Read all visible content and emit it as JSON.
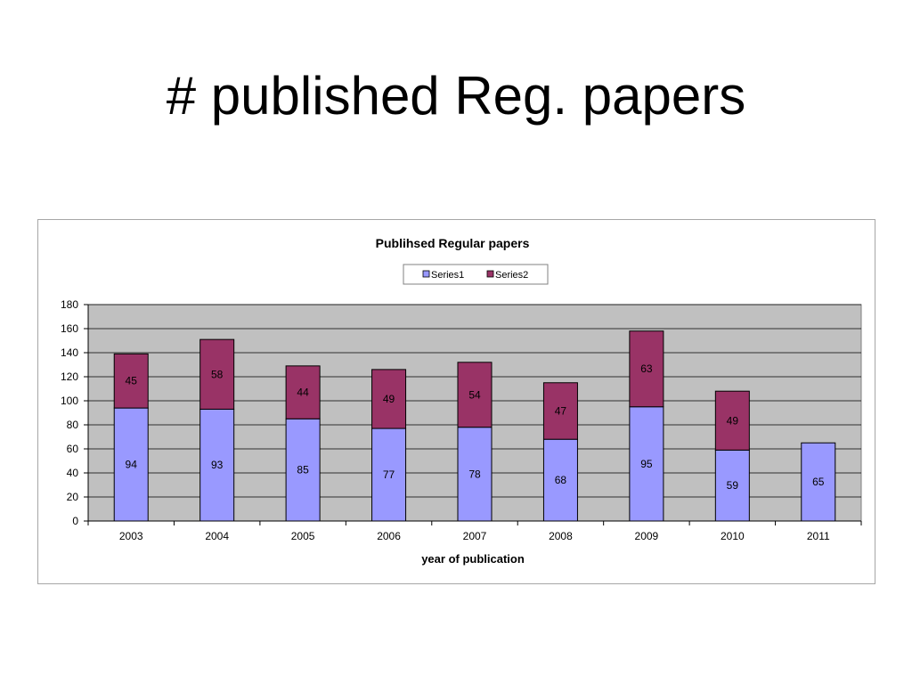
{
  "slide": {
    "title": "# published Reg. papers"
  },
  "chart_data": {
    "type": "bar",
    "stacked": true,
    "title": "Publihsed Regular papers",
    "xlabel": "year of publication",
    "ylabel": "",
    "ylim": [
      0,
      180
    ],
    "ytick_step": 20,
    "grid": true,
    "legend_position": "top",
    "categories": [
      "2003",
      "2004",
      "2005",
      "2006",
      "2007",
      "2008",
      "2009",
      "2010",
      "2011"
    ],
    "series": [
      {
        "name": "Series1",
        "color": "#9999ff",
        "values": [
          94,
          93,
          85,
          77,
          78,
          68,
          95,
          59,
          65
        ]
      },
      {
        "name": "Series2",
        "color": "#993366",
        "values": [
          45,
          58,
          44,
          49,
          54,
          47,
          63,
          49,
          null
        ]
      }
    ],
    "plot_background": "#c0c0c0"
  }
}
